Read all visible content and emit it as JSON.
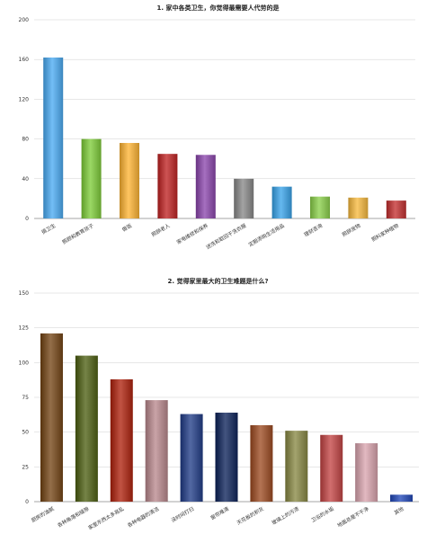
{
  "chart_data": [
    {
      "type": "bar",
      "title": "1. 家中各类卫生，你觉得最需要人代劳的是",
      "categories": [
        "搞卫生",
        "照顾和教育孩子",
        "做饭",
        "照顾老人",
        "家电维修和保养",
        "送洗和取回干洗衣服",
        "定期添购生活用品",
        "理财咨询",
        "照顾宠物",
        "照料家种植物"
      ],
      "values": [
        162,
        80,
        76,
        65,
        64,
        40,
        32,
        22,
        21,
        18
      ],
      "ylim": [
        0,
        200
      ],
      "yticks": [
        0,
        40,
        80,
        120,
        160,
        200
      ],
      "grid": true,
      "colors": [
        "#5aa5dd",
        "#82bf4c",
        "#e6ac48",
        "#b53b3b",
        "#8c56a6",
        "#8a8a8a",
        "#4c9fd6",
        "#8cc25a",
        "#e0b050",
        "#b84545"
      ]
    },
    {
      "type": "bar",
      "title": "2. 觉得家里最大的卫生难题是什么?",
      "categories": [
        "厨房的油腻",
        "各种角落和缝隙",
        "家里东西太多易乱",
        "各种电器的清洁",
        "没时间打扫",
        "窗帘难清",
        "天花板的积灰",
        "玻璃上的污渍",
        "卫浴的水垢",
        "地面总是不干净",
        "其他"
      ],
      "values": [
        121,
        105,
        88,
        73,
        63,
        64,
        55,
        51,
        48,
        42,
        5
      ],
      "ylim": [
        0,
        150
      ],
      "yticks": [
        0,
        25,
        50,
        75,
        100,
        125,
        150
      ],
      "grid": true,
      "colors": [
        "#7a5530",
        "#5c6a2e",
        "#a83a2a",
        "#b08a8e",
        "#3a4f8a",
        "#2a3b66",
        "#9a5a3a",
        "#8a8a55",
        "#b85555",
        "#c9a0a8",
        "#3a58b0"
      ]
    }
  ]
}
